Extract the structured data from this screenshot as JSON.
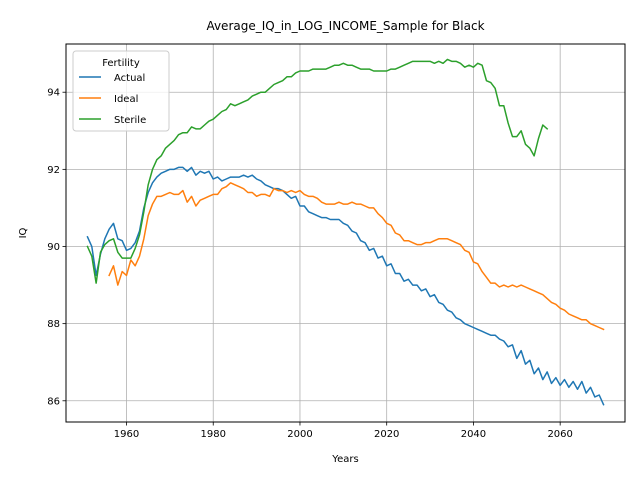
{
  "chart_data": {
    "type": "line",
    "title": "Average_IQ_in_LOG_INCOME_Sample for Black",
    "xlabel": "Years",
    "ylabel": "IQ",
    "xlim": [
      1946.05,
      2074.95
    ],
    "ylim": [
      85.45,
      95.25
    ],
    "xticks": [
      1960,
      1980,
      2000,
      2020,
      2040,
      2060
    ],
    "yticks": [
      86,
      88,
      90,
      92,
      94
    ],
    "grid": true,
    "legend": {
      "title": "Fertility",
      "placement": "top-left"
    },
    "series": [
      {
        "name": "Actual",
        "color": "#1f77b4",
        "x": [
          1951,
          1952,
          1953,
          1954,
          1955,
          1956,
          1957,
          1958,
          1959,
          1960,
          1961,
          1962,
          1963,
          1964,
          1965,
          1966,
          1967,
          1968,
          1969,
          1970,
          1971,
          1972,
          1973,
          1974,
          1975,
          1976,
          1977,
          1978,
          1979,
          1980,
          1981,
          1982,
          1983,
          1984,
          1985,
          1986,
          1987,
          1988,
          1989,
          1990,
          1991,
          1992,
          1993,
          1994,
          1995,
          1996,
          1997,
          1998,
          1999,
          2000,
          2001,
          2002,
          2003,
          2004,
          2005,
          2006,
          2007,
          2008,
          2009,
          2010,
          2011,
          2012,
          2013,
          2014,
          2015,
          2016,
          2017,
          2018,
          2019,
          2020,
          2021,
          2022,
          2023,
          2024,
          2025,
          2026,
          2027,
          2028,
          2029,
          2030,
          2031,
          2032,
          2033,
          2034,
          2035,
          2036,
          2037,
          2038,
          2039,
          2040,
          2041,
          2042,
          2043,
          2044,
          2045,
          2046,
          2047,
          2048,
          2049,
          2050,
          2051,
          2052,
          2053,
          2054,
          2055,
          2056,
          2057,
          2058,
          2059,
          2060,
          2061,
          2062,
          2063,
          2064,
          2065,
          2066,
          2067,
          2068,
          2069,
          2070
        ],
        "values": [
          90.25,
          90.0,
          89.25,
          89.8,
          90.2,
          90.45,
          90.6,
          90.2,
          90.15,
          89.9,
          89.95,
          90.1,
          90.4,
          91.0,
          91.4,
          91.65,
          91.8,
          91.9,
          91.95,
          92.0,
          92.0,
          92.05,
          92.05,
          91.95,
          92.05,
          91.85,
          91.95,
          91.9,
          91.95,
          91.75,
          91.8,
          91.7,
          91.75,
          91.8,
          91.8,
          91.8,
          91.85,
          91.8,
          91.85,
          91.75,
          91.7,
          91.6,
          91.55,
          91.5,
          91.5,
          91.45,
          91.35,
          91.25,
          91.3,
          91.05,
          91.05,
          90.9,
          90.85,
          90.8,
          90.75,
          90.75,
          90.7,
          90.7,
          90.7,
          90.6,
          90.55,
          90.4,
          90.35,
          90.15,
          90.1,
          89.9,
          89.95,
          89.7,
          89.75,
          89.5,
          89.55,
          89.3,
          89.3,
          89.1,
          89.15,
          89.0,
          89.0,
          88.85,
          88.9,
          88.7,
          88.75,
          88.55,
          88.5,
          88.35,
          88.3,
          88.15,
          88.1,
          88.0,
          87.95,
          87.9,
          87.85,
          87.8,
          87.75,
          87.7,
          87.7,
          87.6,
          87.55,
          87.4,
          87.45,
          87.1,
          87.3,
          86.95,
          87.05,
          86.7,
          86.85,
          86.55,
          86.75,
          86.45,
          86.6,
          86.4,
          86.55,
          86.35,
          86.5,
          86.3,
          86.5,
          86.2,
          86.35,
          86.1,
          86.15,
          85.9
        ]
      },
      {
        "name": "Ideal",
        "color": "#ff7f0e",
        "x": [
          1956,
          1957,
          1958,
          1959,
          1960,
          1961,
          1962,
          1963,
          1964,
          1965,
          1966,
          1967,
          1968,
          1969,
          1970,
          1971,
          1972,
          1973,
          1974,
          1975,
          1976,
          1977,
          1978,
          1979,
          1980,
          1981,
          1982,
          1983,
          1984,
          1985,
          1986,
          1987,
          1988,
          1989,
          1990,
          1991,
          1992,
          1993,
          1994,
          1995,
          1996,
          1997,
          1998,
          1999,
          2000,
          2001,
          2002,
          2003,
          2004,
          2005,
          2006,
          2007,
          2008,
          2009,
          2010,
          2011,
          2012,
          2013,
          2014,
          2015,
          2016,
          2017,
          2018,
          2019,
          2020,
          2021,
          2022,
          2023,
          2024,
          2025,
          2026,
          2027,
          2028,
          2029,
          2030,
          2031,
          2032,
          2033,
          2034,
          2035,
          2036,
          2037,
          2038,
          2039,
          2040,
          2041,
          2042,
          2043,
          2044,
          2045,
          2046,
          2047,
          2048,
          2049,
          2050,
          2051,
          2052,
          2053,
          2054,
          2055,
          2056,
          2057,
          2058,
          2059,
          2060,
          2061,
          2062,
          2063,
          2064,
          2065,
          2066,
          2067,
          2068,
          2069,
          2070
        ],
        "values": [
          89.25,
          89.5,
          89.0,
          89.35,
          89.25,
          89.65,
          89.5,
          89.75,
          90.2,
          90.8,
          91.1,
          91.3,
          91.3,
          91.35,
          91.4,
          91.35,
          91.35,
          91.45,
          91.15,
          91.3,
          91.05,
          91.2,
          91.25,
          91.3,
          91.35,
          91.35,
          91.5,
          91.55,
          91.65,
          91.6,
          91.55,
          91.5,
          91.4,
          91.4,
          91.3,
          91.35,
          91.35,
          91.3,
          91.5,
          91.45,
          91.45,
          91.4,
          91.45,
          91.4,
          91.45,
          91.35,
          91.3,
          91.3,
          91.25,
          91.15,
          91.1,
          91.1,
          91.1,
          91.15,
          91.1,
          91.1,
          91.15,
          91.1,
          91.1,
          91.05,
          91.0,
          91.0,
          90.85,
          90.75,
          90.6,
          90.55,
          90.35,
          90.3,
          90.15,
          90.15,
          90.1,
          90.05,
          90.05,
          90.1,
          90.1,
          90.15,
          90.2,
          90.2,
          90.2,
          90.15,
          90.1,
          90.05,
          89.9,
          89.85,
          89.6,
          89.55,
          89.35,
          89.2,
          89.05,
          89.05,
          88.95,
          89.0,
          88.95,
          89.0,
          88.95,
          89.0,
          88.95,
          88.9,
          88.85,
          88.8,
          88.75,
          88.65,
          88.55,
          88.5,
          88.4,
          88.35,
          88.25,
          88.2,
          88.15,
          88.1,
          88.1,
          88.0,
          87.95,
          87.9,
          87.85
        ]
      },
      {
        "name": "Sterile",
        "color": "#2ca02c",
        "x": [
          1951,
          1952,
          1953,
          1954,
          1955,
          1956,
          1957,
          1958,
          1959,
          1960,
          1961,
          1962,
          1963,
          1964,
          1965,
          1966,
          1967,
          1968,
          1969,
          1970,
          1971,
          1972,
          1973,
          1974,
          1975,
          1976,
          1977,
          1978,
          1979,
          1980,
          1981,
          1982,
          1983,
          1984,
          1985,
          1986,
          1987,
          1988,
          1989,
          1990,
          1991,
          1992,
          1993,
          1994,
          1995,
          1996,
          1997,
          1998,
          1999,
          2000,
          2001,
          2002,
          2003,
          2004,
          2005,
          2006,
          2007,
          2008,
          2009,
          2010,
          2011,
          2012,
          2013,
          2014,
          2015,
          2016,
          2017,
          2018,
          2019,
          2020,
          2021,
          2022,
          2023,
          2024,
          2025,
          2026,
          2027,
          2028,
          2029,
          2030,
          2031,
          2032,
          2033,
          2034,
          2035,
          2036,
          2037,
          2038,
          2039,
          2040,
          2041,
          2042,
          2043,
          2044,
          2045,
          2046,
          2047,
          2048,
          2049,
          2050,
          2051,
          2052,
          2053,
          2054,
          2055,
          2056,
          2057
        ],
        "values": [
          90.0,
          89.75,
          89.05,
          89.85,
          90.05,
          90.15,
          90.2,
          89.85,
          89.7,
          89.7,
          89.7,
          89.95,
          90.3,
          90.9,
          91.6,
          92.0,
          92.25,
          92.35,
          92.55,
          92.65,
          92.75,
          92.9,
          92.95,
          92.95,
          93.1,
          93.05,
          93.05,
          93.15,
          93.25,
          93.3,
          93.4,
          93.5,
          93.55,
          93.7,
          93.65,
          93.7,
          93.75,
          93.8,
          93.9,
          93.95,
          94.0,
          94.0,
          94.1,
          94.2,
          94.25,
          94.3,
          94.4,
          94.4,
          94.5,
          94.55,
          94.55,
          94.55,
          94.6,
          94.6,
          94.6,
          94.6,
          94.65,
          94.7,
          94.7,
          94.75,
          94.7,
          94.7,
          94.65,
          94.6,
          94.6,
          94.6,
          94.55,
          94.55,
          94.55,
          94.55,
          94.6,
          94.6,
          94.65,
          94.7,
          94.75,
          94.8,
          94.8,
          94.8,
          94.8,
          94.8,
          94.75,
          94.8,
          94.75,
          94.85,
          94.8,
          94.8,
          94.75,
          94.65,
          94.7,
          94.65,
          94.75,
          94.7,
          94.3,
          94.25,
          94.1,
          93.65,
          93.65,
          93.2,
          92.85,
          92.85,
          93.0,
          92.65,
          92.55,
          92.35,
          92.8,
          93.15,
          93.05
        ]
      }
    ]
  }
}
